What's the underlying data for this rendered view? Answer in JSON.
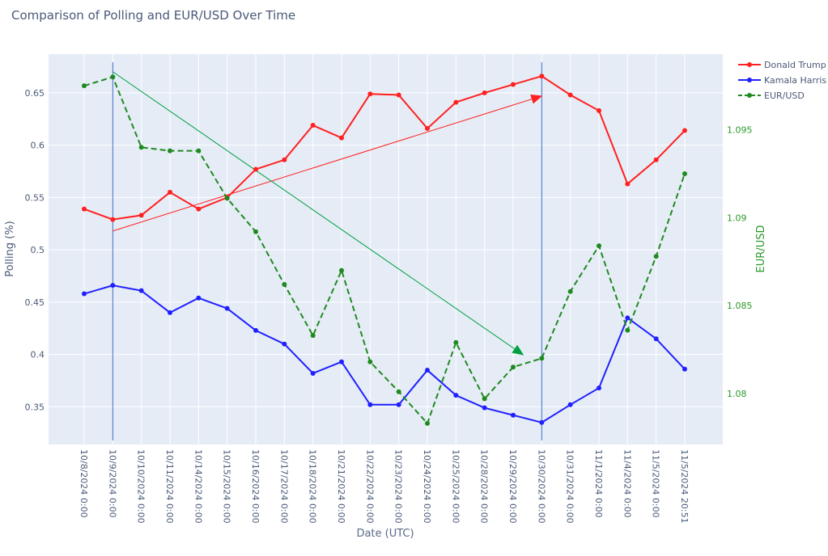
{
  "chart_data": {
    "type": "line",
    "title": "Comparison of Polling and EUR/USD Over Time",
    "xlabel": "Date (UTC)",
    "ylabel": "Polling (%)",
    "y2label": "EUR/USD",
    "ylim": [
      0.314,
      0.687
    ],
    "y2lim": [
      1.0771,
      1.0993
    ],
    "yticks": [
      0.35,
      0.4,
      0.45,
      0.5,
      0.55,
      0.6,
      0.65
    ],
    "ytick_labels": [
      "0.35",
      "0.4",
      "0.45",
      "0.5",
      "0.55",
      "0.6",
      "0.65"
    ],
    "y2ticks": [
      1.08,
      1.085,
      1.09,
      1.095
    ],
    "y2tick_labels": [
      "1.08",
      "1.085",
      "1.09",
      "1.095"
    ],
    "grid": true,
    "legend_position": "top-right",
    "categories": [
      "10/8/2024 0:00",
      "10/9/2024 0:00",
      "10/10/2024 0:00",
      "10/11/2024 0:00",
      "10/14/2024 0:00",
      "10/15/2024 0:00",
      "10/16/2024 0:00",
      "10/17/2024 0:00",
      "10/18/2024 0:00",
      "10/21/2024 0:00",
      "10/22/2024 0:00",
      "10/23/2024 0:00",
      "10/24/2024 0:00",
      "10/25/2024 0:00",
      "10/28/2024 0:00",
      "10/29/2024 0:00",
      "10/30/2024 0:00",
      "10/31/2024 0:00",
      "11/1/2024 0:00",
      "11/4/2024 0:00",
      "11/5/2024 0:00",
      "11/5/2024 20:51"
    ],
    "series": [
      {
        "name": "Donald Trump",
        "axis": "y",
        "color": "#ff2020",
        "dash": false,
        "values": [
          0.539,
          0.529,
          0.533,
          0.555,
          0.539,
          0.55,
          0.577,
          0.586,
          0.619,
          0.607,
          0.649,
          0.648,
          0.616,
          0.641,
          0.65,
          0.658,
          0.666,
          0.648,
          0.633,
          0.563,
          0.586,
          0.614
        ]
      },
      {
        "name": "Kamala Harris",
        "axis": "y",
        "color": "#2020ff",
        "dash": false,
        "values": [
          0.458,
          0.466,
          0.461,
          0.44,
          0.454,
          0.444,
          0.423,
          0.41,
          0.382,
          0.393,
          0.352,
          0.352,
          0.385,
          0.361,
          0.349,
          0.342,
          0.335,
          0.352,
          0.368,
          0.435,
          0.415,
          0.386
        ]
      },
      {
        "name": "EUR/USD",
        "axis": "y2",
        "color": "#1f8a1f",
        "dash": true,
        "values": [
          1.0975,
          1.098,
          1.094,
          1.0938,
          1.0938,
          1.0911,
          1.0892,
          1.0862,
          1.0833,
          1.087,
          1.0818,
          1.0801,
          1.0783,
          1.0829,
          1.0797,
          1.0815,
          1.082,
          1.0858,
          1.0884,
          1.0836,
          1.0878,
          1.0925
        ]
      }
    ],
    "annotations": {
      "vlines": [
        1,
        16
      ],
      "arrows": [
        {
          "from": [
            1,
            0.518
          ],
          "to": [
            16,
            0.647
          ],
          "axis": "y",
          "color": "#ff2020"
        },
        {
          "from": [
            1,
            1.0983
          ],
          "to": [
            15.35,
            1.0822
          ],
          "axis": "y2",
          "color": "#00a040"
        }
      ]
    }
  }
}
